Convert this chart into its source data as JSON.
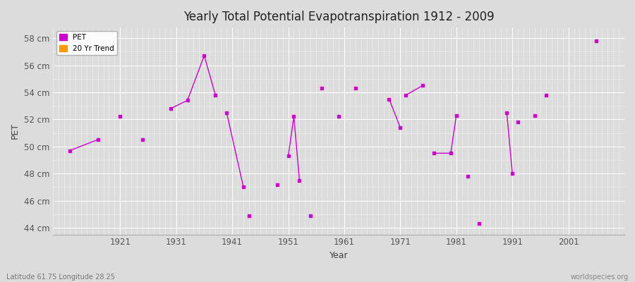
{
  "title": "Yearly Total Potential Evapotranspiration 1912 - 2009",
  "xlabel": "Year",
  "ylabel": "PET",
  "subtitle_lat_lon": "Latitude 61.75 Longitude 28.25",
  "watermark": "worldspecies.org",
  "pet_color": "#cc00cc",
  "trend_color": "#ff9900",
  "bg_color": "#dcdcdc",
  "plot_bg_color": "#dcdcdc",
  "ylim": [
    43.5,
    58.8
  ],
  "yticks": [
    44,
    46,
    48,
    50,
    52,
    54,
    56,
    58
  ],
  "ytick_labels": [
    "44 cm",
    "46 cm",
    "48 cm",
    "50 cm",
    "52 cm",
    "54 cm",
    "56 cm",
    "58 cm"
  ],
  "xlim": [
    1909,
    2011
  ],
  "xticks": [
    1921,
    1931,
    1941,
    1951,
    1961,
    1971,
    1981,
    1991,
    2001
  ],
  "segments": [
    {
      "years": [
        1912,
        1917
      ],
      "values": [
        49.7,
        50.5
      ]
    },
    {
      "years": [
        1921
      ],
      "values": [
        52.2
      ]
    },
    {
      "years": [
        1925
      ],
      "values": [
        50.5
      ]
    },
    {
      "years": [
        1930,
        1933,
        1936,
        1938
      ],
      "values": [
        52.8,
        53.4,
        56.7,
        53.8
      ]
    },
    {
      "years": [
        1940,
        1943
      ],
      "values": [
        52.5,
        47.0
      ]
    },
    {
      "years": [
        1944
      ],
      "values": [
        44.9
      ]
    },
    {
      "years": [
        1949
      ],
      "values": [
        47.2
      ]
    },
    {
      "years": [
        1951,
        1952,
        1953
      ],
      "values": [
        49.3,
        52.2,
        47.5
      ]
    },
    {
      "years": [
        1955
      ],
      "values": [
        44.9
      ]
    },
    {
      "years": [
        1957
      ],
      "values": [
        54.3
      ]
    },
    {
      "years": [
        1960
      ],
      "values": [
        52.2
      ]
    },
    {
      "years": [
        1963
      ],
      "values": [
        54.3
      ]
    },
    {
      "years": [
        1969,
        1971
      ],
      "values": [
        53.5,
        51.4
      ]
    },
    {
      "years": [
        1972,
        1975
      ],
      "values": [
        53.8,
        54.5
      ]
    },
    {
      "years": [
        1977,
        1980,
        1981
      ],
      "values": [
        49.5,
        49.5,
        52.3
      ]
    },
    {
      "years": [
        1983
      ],
      "values": [
        47.8
      ]
    },
    {
      "years": [
        1985
      ],
      "values": [
        44.3
      ]
    },
    {
      "years": [
        1990,
        1991
      ],
      "values": [
        52.5,
        48.0
      ]
    },
    {
      "years": [
        1992
      ],
      "values": [
        51.8
      ]
    },
    {
      "years": [
        1995
      ],
      "values": [
        52.3
      ]
    },
    {
      "years": [
        1997
      ],
      "values": [
        53.8
      ]
    },
    {
      "years": [
        2006
      ],
      "values": [
        57.8
      ]
    }
  ]
}
